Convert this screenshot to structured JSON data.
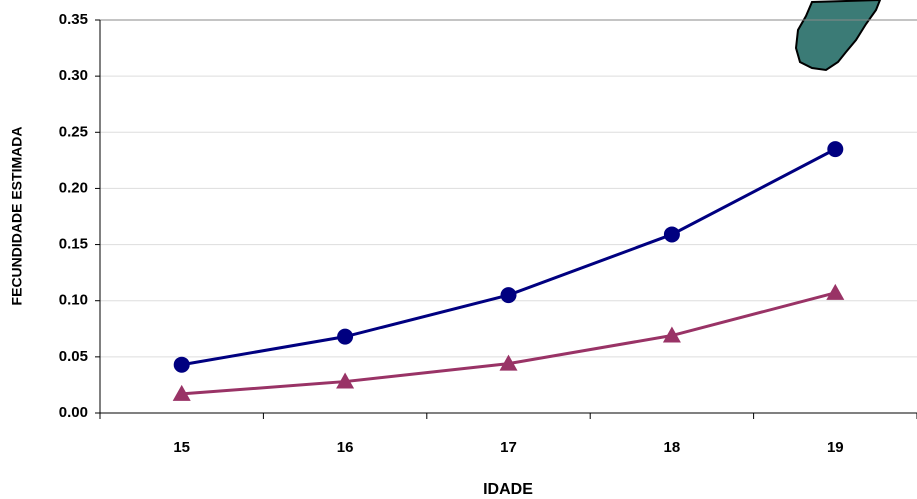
{
  "chart_data": {
    "type": "line",
    "x_label": "IDADE",
    "y_label": "FECUNDIDADE ESTIMADA",
    "categories": [
      "15",
      "16",
      "17",
      "18",
      "19"
    ],
    "series": [
      {
        "color": "#000080",
        "marker": "circle",
        "values": [
          0.043,
          0.068,
          0.105,
          0.159,
          0.235
        ]
      },
      {
        "color": "#993366",
        "marker": "triangle",
        "values": [
          0.017,
          0.028,
          0.044,
          0.069,
          0.107
        ]
      }
    ],
    "ylim": [
      0,
      0.35
    ],
    "yticks": [
      {
        "value": 0,
        "label": "0.00"
      },
      {
        "value": 0.05,
        "label": "0.05"
      },
      {
        "value": 0.1,
        "label": "0.10"
      },
      {
        "value": 0.15,
        "label": "0.15"
      },
      {
        "value": 0.2,
        "label": "0.20"
      },
      {
        "value": 0.25,
        "label": "0.25"
      },
      {
        "value": 0.3,
        "label": "0.30"
      },
      {
        "value": 0.35,
        "label": "0.35"
      }
    ],
    "grid": true
  }
}
